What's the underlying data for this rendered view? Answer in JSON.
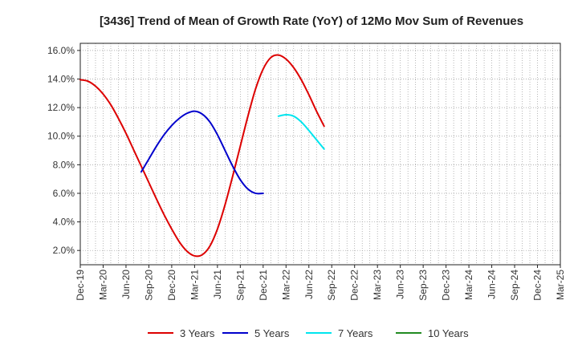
{
  "chart_data": {
    "type": "line",
    "title": "[3436]  Trend of Mean of Growth Rate (YoY) of 12Mo Mov Sum of Revenues",
    "xlabel": "",
    "ylabel": "",
    "ylim": [
      1.0,
      16.5
    ],
    "yticks": [
      2.0,
      4.0,
      6.0,
      8.0,
      10.0,
      12.0,
      14.0,
      16.0
    ],
    "ytick_labels": [
      "2.0%",
      "4.0%",
      "6.0%",
      "8.0%",
      "10.0%",
      "12.0%",
      "14.0%",
      "16.0%"
    ],
    "x_labels": [
      "Dec-19",
      "Mar-20",
      "Jun-20",
      "Sep-20",
      "Dec-20",
      "Mar-21",
      "Jun-21",
      "Sep-21",
      "Dec-21",
      "Mar-22",
      "Jun-22",
      "Sep-22",
      "Dec-22",
      "Mar-23",
      "Jun-23",
      "Sep-23",
      "Dec-23",
      "Mar-24",
      "Jun-24",
      "Sep-24",
      "Dec-24",
      "Mar-25"
    ],
    "grid": true,
    "legend_position": "bottom",
    "series": [
      {
        "name": "3 Years",
        "color": "#dd0000",
        "start_index": 0,
        "values": [
          13.95,
          13.85,
          13.5,
          12.95,
          12.2,
          11.25,
          10.2,
          9.05,
          7.9,
          6.75,
          5.6,
          4.5,
          3.5,
          2.6,
          1.95,
          1.62,
          1.7,
          2.3,
          3.5,
          5.2,
          7.2,
          9.3,
          11.4,
          13.3,
          14.7,
          15.5,
          15.68,
          15.4,
          14.8,
          13.95,
          12.9,
          11.75,
          10.7
        ]
      },
      {
        "name": "5 Years",
        "color": "#0000cc",
        "start_index": 8,
        "values": [
          7.5,
          8.4,
          9.3,
          10.1,
          10.75,
          11.25,
          11.6,
          11.75,
          11.55,
          11.0,
          10.1,
          9.0,
          7.9,
          6.95,
          6.3,
          6.0,
          6.0
        ]
      },
      {
        "name": "7 Years",
        "color": "#00e5ee",
        "start_index": 26,
        "values": [
          11.4,
          11.5,
          11.4,
          11.0,
          10.4,
          9.75,
          9.1
        ]
      },
      {
        "name": "10 Years",
        "color": "#228b22",
        "start_index": 0,
        "values": []
      }
    ]
  }
}
